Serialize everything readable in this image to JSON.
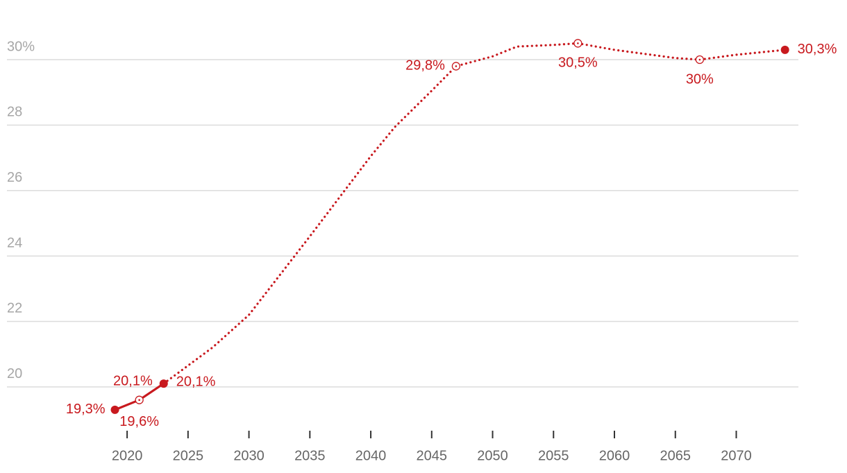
{
  "chart_data": {
    "type": "line",
    "x": [
      2019,
      2021,
      2023,
      2027,
      2030,
      2035,
      2040,
      2042,
      2045,
      2047,
      2050,
      2052,
      2055,
      2057,
      2060,
      2065,
      2067,
      2070,
      2074
    ],
    "xlim": [
      2018,
      2075.5
    ],
    "xticks": [
      2020,
      2025,
      2030,
      2035,
      2040,
      2045,
      2050,
      2055,
      2060,
      2065,
      2070
    ],
    "ylim": [
      19,
      30.7
    ],
    "yticks": [
      20,
      22,
      24,
      26,
      28,
      {
        "value": 30,
        "label": "30%"
      }
    ],
    "grid": true,
    "series": [
      {
        "color": "#c8191e",
        "style": "solid",
        "values": [
          19.3,
          19.6,
          20.1,
          null,
          null,
          null,
          null,
          null,
          null,
          null,
          null,
          null,
          null,
          null,
          null,
          null,
          null,
          null,
          null
        ],
        "value_labels": [
          "19,3%",
          "19,6%",
          "20,1%",
          null,
          null,
          null,
          null,
          null,
          null,
          null,
          null,
          null,
          null,
          null,
          null,
          null,
          null,
          null,
          null
        ],
        "markers": [
          "filled",
          "open",
          "filled",
          null,
          null,
          null,
          null,
          null,
          null,
          null,
          null,
          null,
          null,
          null,
          null,
          null,
          null,
          null,
          null
        ]
      },
      {
        "color": "#c8191e",
        "style": "dotted",
        "values": [
          null,
          null,
          20.1,
          21.2,
          22.2,
          24.6,
          27.05,
          27.95,
          29.05,
          29.8,
          30.1,
          30.4,
          30.45,
          30.5,
          30.3,
          30.05,
          30,
          30.15,
          30.3
        ],
        "value_labels": [
          null,
          null,
          "20,1%",
          null,
          null,
          null,
          null,
          null,
          null,
          "29,8%",
          null,
          null,
          null,
          "30,5%",
          null,
          null,
          "30%",
          null,
          "30,3%"
        ],
        "markers": [
          null,
          null,
          null,
          null,
          null,
          null,
          null,
          null,
          null,
          "open",
          null,
          null,
          null,
          "open",
          null,
          null,
          "open",
          null,
          "filled"
        ]
      }
    ]
  }
}
